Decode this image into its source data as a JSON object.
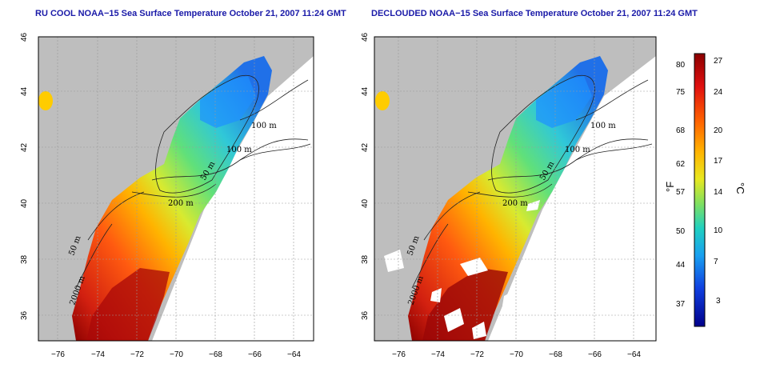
{
  "titles": {
    "left": "RU COOL NOAA−15 Sea Surface Temperature October 21, 2007 11:24 GMT",
    "right": "DECLOUDED NOAA−15 Sea Surface Temperature October 21, 2007 11:24 GMT"
  },
  "axes": {
    "lon_ticks": [
      "−76",
      "−74",
      "−72",
      "−70",
      "−68",
      "−66",
      "−64"
    ],
    "lat_ticks": [
      "36",
      "38",
      "40",
      "42",
      "44",
      "46"
    ]
  },
  "contours": {
    "left": [
      "100 m",
      "100 m",
      "50 m",
      "200 m",
      "50 m",
      "2000 m"
    ],
    "right": [
      "100 m",
      "100 m",
      "50 m",
      "200 m",
      "50 m",
      "2000 m"
    ]
  },
  "colorbar": {
    "f_labels": [
      "80",
      "75",
      "68",
      "62",
      "57",
      "50",
      "44",
      "37"
    ],
    "c_labels": [
      "27",
      "24",
      "20",
      "17",
      "14",
      "10",
      "7",
      "3"
    ],
    "f_unit": "°F",
    "c_unit": "°C"
  },
  "colors": {
    "title": "#1a1aa8",
    "land": "#bebebe",
    "warm": "#c81414",
    "cool": "#1e8cff",
    "mid": "#ffd200"
  }
}
